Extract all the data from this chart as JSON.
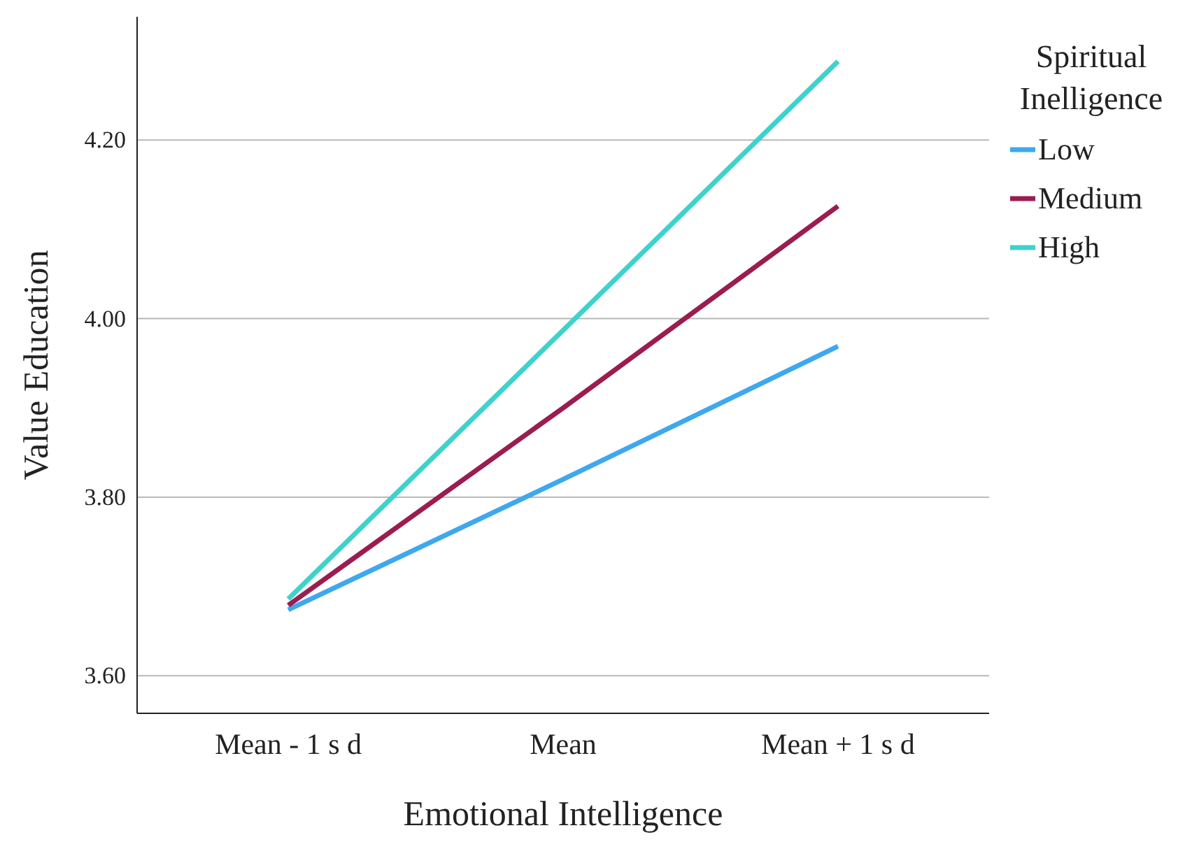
{
  "chart_data": {
    "type": "line",
    "xlabel": "Emotional Intelligence",
    "ylabel": "Value Education",
    "legend_title": "Spiritual Inelligence",
    "categories": [
      "Mean - 1 s d",
      "Mean",
      "Mean + 1 s d"
    ],
    "series": [
      {
        "name": "Low",
        "color": "#3ea8ef",
        "values": [
          3.674,
          3.82,
          3.969
        ]
      },
      {
        "name": "Medium",
        "color": "#9b1d4f",
        "values": [
          3.679,
          3.9,
          4.126
        ]
      },
      {
        "name": "High",
        "color": "#3fd2cc",
        "values": [
          3.686,
          3.987,
          4.288
        ]
      }
    ],
    "ylim": [
      3.558,
      4.338
    ],
    "yticks": [
      {
        "value": 3.6,
        "label": "3.60"
      },
      {
        "value": 3.8,
        "label": "3.80"
      },
      {
        "value": 4.0,
        "label": "4.00"
      },
      {
        "value": 4.2,
        "label": "4.20"
      }
    ],
    "grid": "y",
    "legend": "top right",
    "marker": "none",
    "line_style": "solid"
  }
}
